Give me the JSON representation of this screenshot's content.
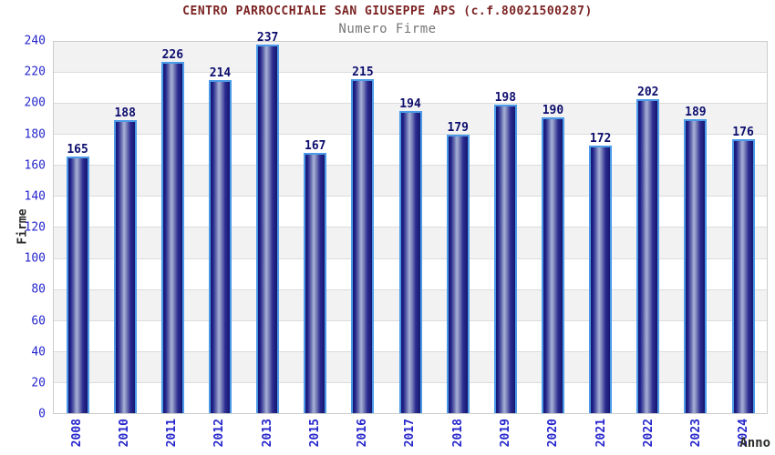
{
  "chart_data": {
    "type": "bar",
    "title": "CENTRO PARROCCHIALE SAN GIUSEPPE APS (c.f.80021500287)",
    "subtitle": "Numero Firme",
    "xlabel": "Anno",
    "ylabel": "Firme",
    "categories": [
      "2008",
      "2010",
      "2011",
      "2012",
      "2013",
      "2015",
      "2016",
      "2017",
      "2018",
      "2019",
      "2020",
      "2021",
      "2022",
      "2023",
      "2024"
    ],
    "values": [
      165,
      188,
      226,
      214,
      237,
      167,
      215,
      194,
      179,
      198,
      190,
      172,
      202,
      189,
      176
    ],
    "ylim": [
      0,
      240
    ],
    "ytick_step": 20,
    "yticks": [
      0,
      20,
      40,
      60,
      80,
      100,
      120,
      140,
      160,
      180,
      200,
      220,
      240
    ],
    "legend": "none",
    "grid": "horizontal alternating shaded bands every 20 units with light gridlines",
    "bar_value_labels_shown": true
  },
  "colors": {
    "background": "#ffffff",
    "title_color": "#7b2222",
    "subtitle_color": "#757575",
    "axis_tick_labels": "#2525cc",
    "value_labels": "#0d0d6e",
    "axis_titles": "#2b2b2b",
    "bar_border": "#4b9be8",
    "bar_dark": "#15156e",
    "bar_light": "#a9b0d8",
    "band_fill": "#f2f2f2",
    "gridline": "#dcdcdc",
    "plot_border": "#cccccc"
  }
}
